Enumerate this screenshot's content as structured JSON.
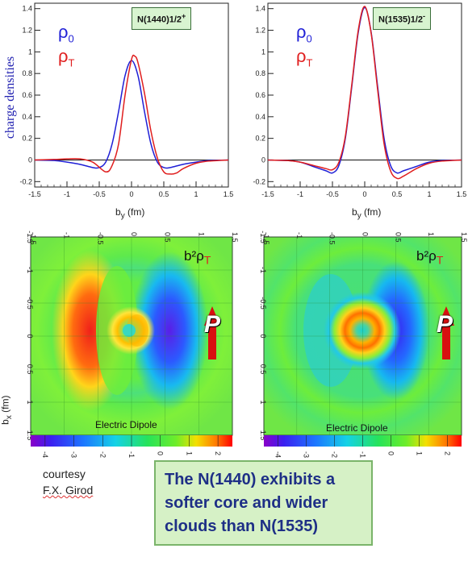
{
  "top_panels": [
    {
      "title": "N(1440)1/2",
      "title_sup": "+",
      "legend": [
        "ρ",
        "ρ"
      ],
      "legend_sub": [
        "0",
        "T"
      ]
    },
    {
      "title": "N(1535)1/2",
      "title_sup": "-",
      "legend": [
        "ρ",
        "ρ"
      ],
      "legend_sub": [
        "0",
        "T"
      ]
    }
  ],
  "y_axis_label": "charge densities",
  "x_axis_label_base": "b",
  "x_axis_label_sub": "y",
  "x_axis_label_unit": " (fm)",
  "bottom_label": "b²ρ",
  "bottom_label_sub": "T",
  "bottom_dipole": "Electric Dipole",
  "bottom_p": "P",
  "bx_label": "b",
  "bx_sub": "x",
  "bx_unit": " (fm)",
  "courtesy_line1": "courtesy",
  "courtesy_line2": "F.X. Girod",
  "conclusion": "The N(1440) exhibits a softer core and wider clouds than N(1535)",
  "colors": {
    "rho0": "#1f1fd6",
    "rhoT": "#e01e1e",
    "title_box": "#d8f4d0",
    "conclusion_text": "#1e2f86"
  },
  "chart_data": [
    {
      "type": "line",
      "title": "N(1440)1/2+",
      "xlim": [
        -1.5,
        1.5
      ],
      "ylim": [
        -0.25,
        1.45
      ],
      "x_ticks": [
        "-1.5",
        "-1",
        "-0.5",
        "0",
        "0.5",
        "1",
        "1.5"
      ],
      "y_ticks": [
        "-0.2",
        "0",
        "0.2",
        "0.4",
        "0.6",
        "0.8",
        "1",
        "1.2",
        "1.4"
      ],
      "series": [
        {
          "name": "ρ0",
          "color": "#1f1fd6",
          "x": [
            -1.5,
            -1.2,
            -1.0,
            -0.8,
            -0.6,
            -0.5,
            -0.4,
            -0.3,
            -0.2,
            -0.1,
            0,
            0.1,
            0.2,
            0.3,
            0.4,
            0.5,
            0.6,
            0.8,
            1.0,
            1.2,
            1.5
          ],
          "y": [
            0,
            -0.005,
            -0.02,
            -0.04,
            -0.07,
            -0.07,
            -0.02,
            0.15,
            0.45,
            0.78,
            0.92,
            0.78,
            0.45,
            0.15,
            -0.02,
            -0.07,
            -0.07,
            -0.04,
            -0.02,
            -0.005,
            0
          ]
        },
        {
          "name": "ρT",
          "color": "#e01e1e",
          "x": [
            -1.5,
            -1.2,
            -1.0,
            -0.8,
            -0.6,
            -0.4,
            -0.3,
            -0.2,
            -0.1,
            0,
            0.05,
            0.1,
            0.2,
            0.3,
            0.4,
            0.5,
            0.6,
            0.7,
            0.8,
            1.0,
            1.2,
            1.5
          ],
          "y": [
            0,
            0.005,
            0.01,
            0.01,
            -0.02,
            -0.11,
            -0.05,
            0.15,
            0.6,
            0.93,
            0.96,
            0.9,
            0.62,
            0.27,
            0.02,
            -0.11,
            -0.13,
            -0.12,
            -0.08,
            -0.03,
            -0.01,
            0
          ]
        }
      ]
    },
    {
      "type": "line",
      "title": "N(1535)1/2-",
      "xlim": [
        -1.5,
        1.5
      ],
      "ylim": [
        -0.25,
        1.45
      ],
      "x_ticks": [
        "-1.5",
        "-1",
        "-0.5",
        "0",
        "0.5",
        "1",
        "1.5"
      ],
      "y_ticks": [
        "-0.2",
        "0",
        "0.2",
        "0.4",
        "0.6",
        "0.8",
        "1",
        "1.2",
        "1.4"
      ],
      "series": [
        {
          "name": "ρ0",
          "color": "#1f1fd6",
          "x": [
            -1.5,
            -1.2,
            -1.0,
            -0.8,
            -0.6,
            -0.5,
            -0.4,
            -0.3,
            -0.2,
            -0.1,
            0,
            0.1,
            0.2,
            0.3,
            0.4,
            0.5,
            0.6,
            0.8,
            1.0,
            1.2,
            1.5
          ],
          "y": [
            0,
            -0.005,
            -0.02,
            -0.06,
            -0.1,
            -0.12,
            -0.05,
            0.2,
            0.68,
            1.18,
            1.41,
            1.18,
            0.68,
            0.2,
            -0.05,
            -0.12,
            -0.1,
            -0.06,
            -0.02,
            -0.005,
            0
          ]
        },
        {
          "name": "ρT",
          "color": "#e01e1e",
          "x": [
            -1.5,
            -1.2,
            -1.0,
            -0.8,
            -0.6,
            -0.5,
            -0.4,
            -0.3,
            -0.2,
            -0.1,
            0,
            0.1,
            0.2,
            0.3,
            0.4,
            0.5,
            0.6,
            0.8,
            1.0,
            1.2,
            1.5
          ],
          "y": [
            0,
            -0.005,
            -0.02,
            -0.05,
            -0.08,
            -0.09,
            -0.02,
            0.22,
            0.7,
            1.2,
            1.42,
            1.17,
            0.65,
            0.15,
            -0.1,
            -0.17,
            -0.15,
            -0.08,
            -0.03,
            -0.01,
            0
          ]
        }
      ]
    },
    {
      "type": "heatmap",
      "title": "b²ρT",
      "xlim": [
        -1.5,
        1.5
      ],
      "ylim": [
        -1.5,
        1.5
      ],
      "x_ticks": [
        "-1.5",
        "-1",
        "-0.5",
        "0",
        "0.5",
        "1",
        "1.5"
      ],
      "y_ticks": [
        "-1.5",
        "-1",
        "-0.5",
        "0",
        "0.5",
        "1",
        "1.5"
      ],
      "colorbar_ticks": [
        "-4",
        "-3",
        "-2",
        "-1",
        "0",
        "1",
        "2"
      ],
      "colorbar_range": [
        -4.5,
        2.5
      ]
    },
    {
      "type": "heatmap",
      "title": "b²ρT",
      "xlim": [
        -1.5,
        1.5
      ],
      "ylim": [
        -1.5,
        1.5
      ],
      "x_ticks": [
        "-1.5",
        "-1",
        "-0.5",
        "0",
        "0.5",
        "1",
        "1.5"
      ],
      "y_ticks": [
        "-1.5",
        "-1",
        "-0.5",
        "0",
        "0.5",
        "1",
        "1.5"
      ],
      "colorbar_ticks": [
        "-4",
        "-3",
        "-2",
        "-1",
        "0",
        "1",
        "2"
      ],
      "colorbar_range": [
        -4.5,
        2.5
      ]
    }
  ]
}
